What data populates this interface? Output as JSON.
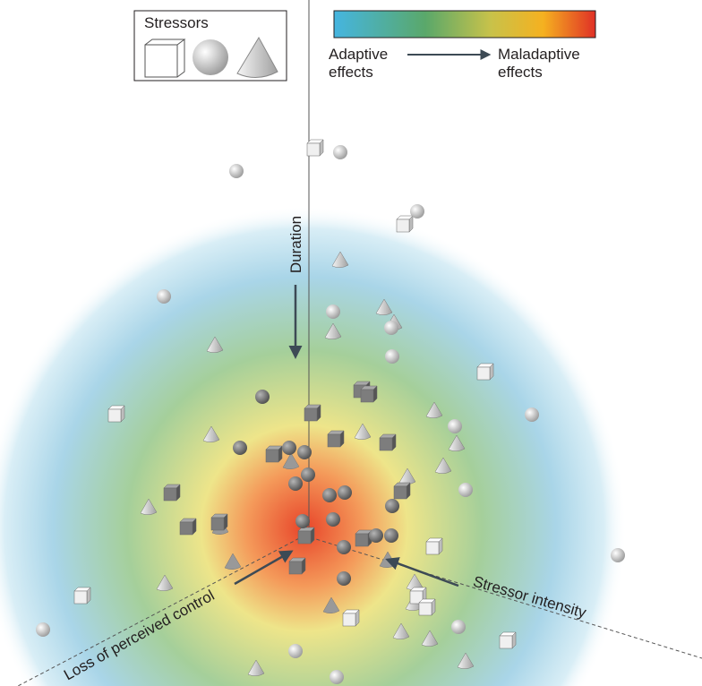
{
  "legend": {
    "title": "Stressors"
  },
  "scale": {
    "low": [
      "Adaptive",
      "effects"
    ],
    "high": [
      "Maladaptive",
      "effects"
    ]
  },
  "axes": {
    "duration": "Duration",
    "intensity": "Stressor intensity",
    "control": "Loss of perceived control"
  }
}
